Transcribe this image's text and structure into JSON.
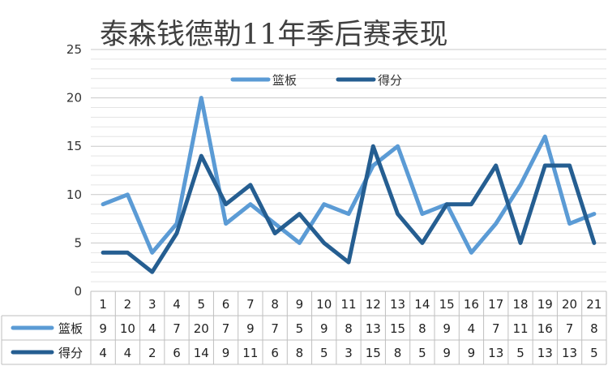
{
  "chart_data": {
    "type": "line",
    "title": "泰森钱德勒11年季后赛表现",
    "categories": [
      "1",
      "2",
      "3",
      "4",
      "5",
      "6",
      "7",
      "8",
      "9",
      "10",
      "11",
      "12",
      "13",
      "14",
      "15",
      "16",
      "17",
      "18",
      "19",
      "20",
      "21"
    ],
    "series": [
      {
        "name": "篮板",
        "color": "#5B9BD5",
        "values": [
          9,
          10,
          4,
          7,
          20,
          7,
          9,
          7,
          5,
          9,
          8,
          13,
          15,
          8,
          9,
          4,
          7,
          11,
          16,
          7,
          8
        ]
      },
      {
        "name": "得分",
        "color": "#255E91",
        "values": [
          4,
          4,
          2,
          6,
          14,
          9,
          11,
          6,
          8,
          5,
          3,
          15,
          8,
          5,
          9,
          9,
          13,
          5,
          13,
          13,
          5
        ]
      }
    ],
    "ylim": [
      0,
      25
    ],
    "yticks": [
      0,
      5,
      10,
      15,
      20,
      25
    ],
    "grid": true,
    "legend": "top-center",
    "data_table": true
  }
}
